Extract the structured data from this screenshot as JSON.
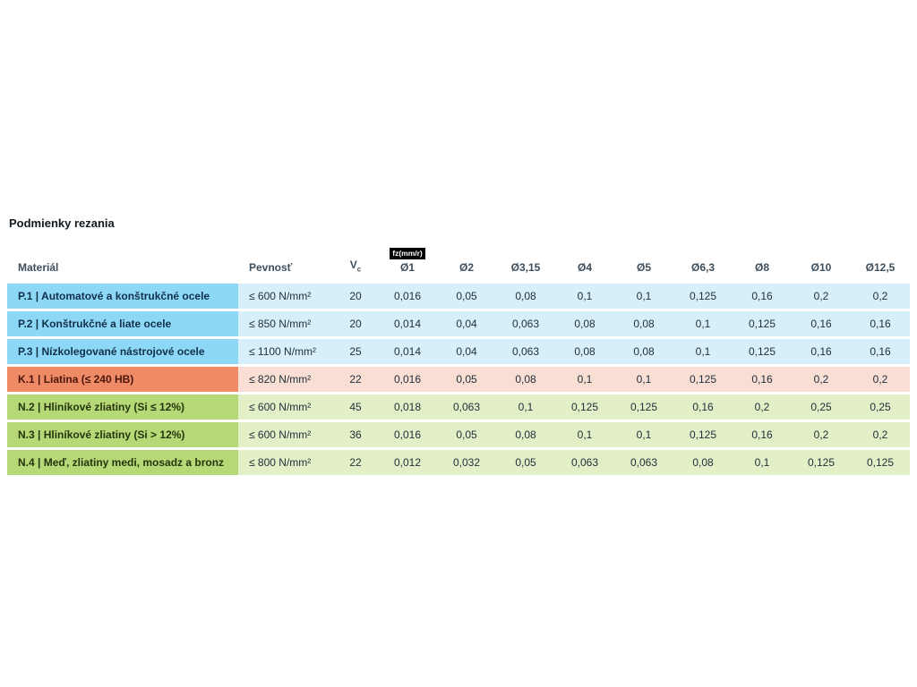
{
  "page": {
    "title": "Podmienky rezania"
  },
  "table": {
    "headers": {
      "material": "Materiál",
      "strength": "Pevnosť",
      "vc_main": "V",
      "vc_sub": "c",
      "fz_badge": "fz(mm/r)",
      "diameters": [
        "Ø1",
        "Ø2",
        "Ø3,15",
        "Ø4",
        "Ø5",
        "Ø6,3",
        "Ø8",
        "Ø10",
        "Ø12,5"
      ]
    },
    "rows": [
      {
        "group": "steel",
        "material": "P.1 | Automatové a konštrukčné ocele",
        "strength": "≤ 600 N/mm²",
        "vc": "20",
        "values": [
          "0,016",
          "0,05",
          "0,08",
          "0,1",
          "0,1",
          "0,125",
          "0,16",
          "0,2",
          "0,2"
        ]
      },
      {
        "group": "steel",
        "material": "P.2 | Konštrukčné a liate ocele",
        "strength": "≤ 850 N/mm²",
        "vc": "20",
        "values": [
          "0,014",
          "0,04",
          "0,063",
          "0,08",
          "0,08",
          "0,1",
          "0,125",
          "0,16",
          "0,16"
        ]
      },
      {
        "group": "steel",
        "material": "P.3 | Nízkolegované nástrojové ocele",
        "strength": "≤ 1100 N/mm²",
        "vc": "25",
        "values": [
          "0,014",
          "0,04",
          "0,063",
          "0,08",
          "0,08",
          "0,1",
          "0,125",
          "0,16",
          "0,16"
        ]
      },
      {
        "group": "cast",
        "material": "K.1 | Liatina (≤ 240 HB)",
        "strength": "≤ 820 N/mm²",
        "vc": "22",
        "values": [
          "0,016",
          "0,05",
          "0,08",
          "0,1",
          "0,1",
          "0,125",
          "0,16",
          "0,2",
          "0,2"
        ]
      },
      {
        "group": "alu",
        "material": "N.2 | Hliníkové zliatiny (Si ≤ 12%)",
        "strength": "≤ 600 N/mm²",
        "vc": "45",
        "values": [
          "0,018",
          "0,063",
          "0,1",
          "0,125",
          "0,125",
          "0,16",
          "0,2",
          "0,25",
          "0,25"
        ]
      },
      {
        "group": "alu",
        "material": "N.3 | Hliníkové zliatiny (Si > 12%)",
        "strength": "≤ 600 N/mm²",
        "vc": "36",
        "values": [
          "0,016",
          "0,05",
          "0,08",
          "0,1",
          "0,1",
          "0,125",
          "0,16",
          "0,2",
          "0,2"
        ]
      },
      {
        "group": "alu",
        "material": "N.4 | Meď, zliatiny medi, mosadz a bronz",
        "strength": "≤ 800 N/mm²",
        "vc": "22",
        "values": [
          "0,012",
          "0,032",
          "0,05",
          "0,063",
          "0,063",
          "0,08",
          "0,1",
          "0,125",
          "0,125"
        ]
      }
    ],
    "colors": {
      "steel_label": "#8ed8f7",
      "steel_cell": "#d7effb",
      "cast_label": "#ef8a66",
      "cast_cell": "#f9ded3",
      "alu_label": "#b7d877",
      "alu_cell": "#e2efc7",
      "badge_bg": "#000000",
      "badge_text": "#ffffff"
    }
  }
}
